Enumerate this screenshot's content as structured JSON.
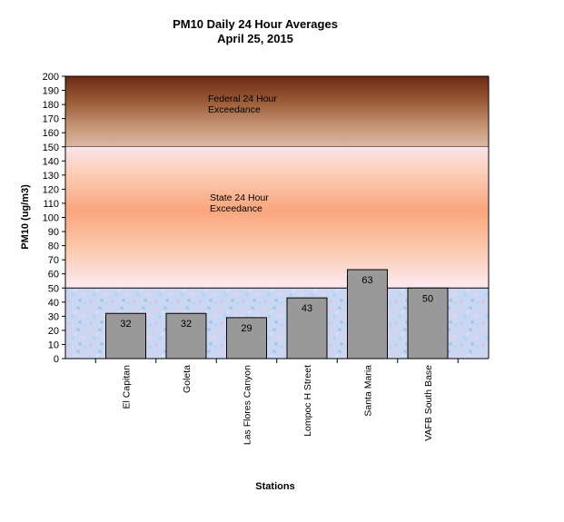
{
  "chart_data": {
    "type": "bar",
    "title": "PM10 Daily 24 Hour Averages",
    "subtitle": "April 25, 2015",
    "xlabel": "Stations",
    "ylabel": "PM10 (ug/m3)",
    "ylim": [
      0,
      200
    ],
    "ytick_step": 10,
    "grid": false,
    "legend": "none",
    "categories": [
      "El Capitan",
      "Goleta",
      "Las Flores Canyon",
      "Lompoc H Street",
      "Santa Maria",
      "VAFB South Base"
    ],
    "values": [
      32,
      32,
      29,
      43,
      63,
      50
    ],
    "data_labels": [
      "32",
      "32",
      "29",
      "43",
      "63",
      "50"
    ],
    "bar_color": "#999999",
    "zones": [
      {
        "label_lines": [
          "Federal 24 Hour",
          "Exceedance"
        ],
        "from": 150,
        "to": 200
      },
      {
        "label_lines": [
          "State 24 Hour",
          "Exceedance"
        ],
        "from": 50,
        "to": 150
      }
    ]
  }
}
